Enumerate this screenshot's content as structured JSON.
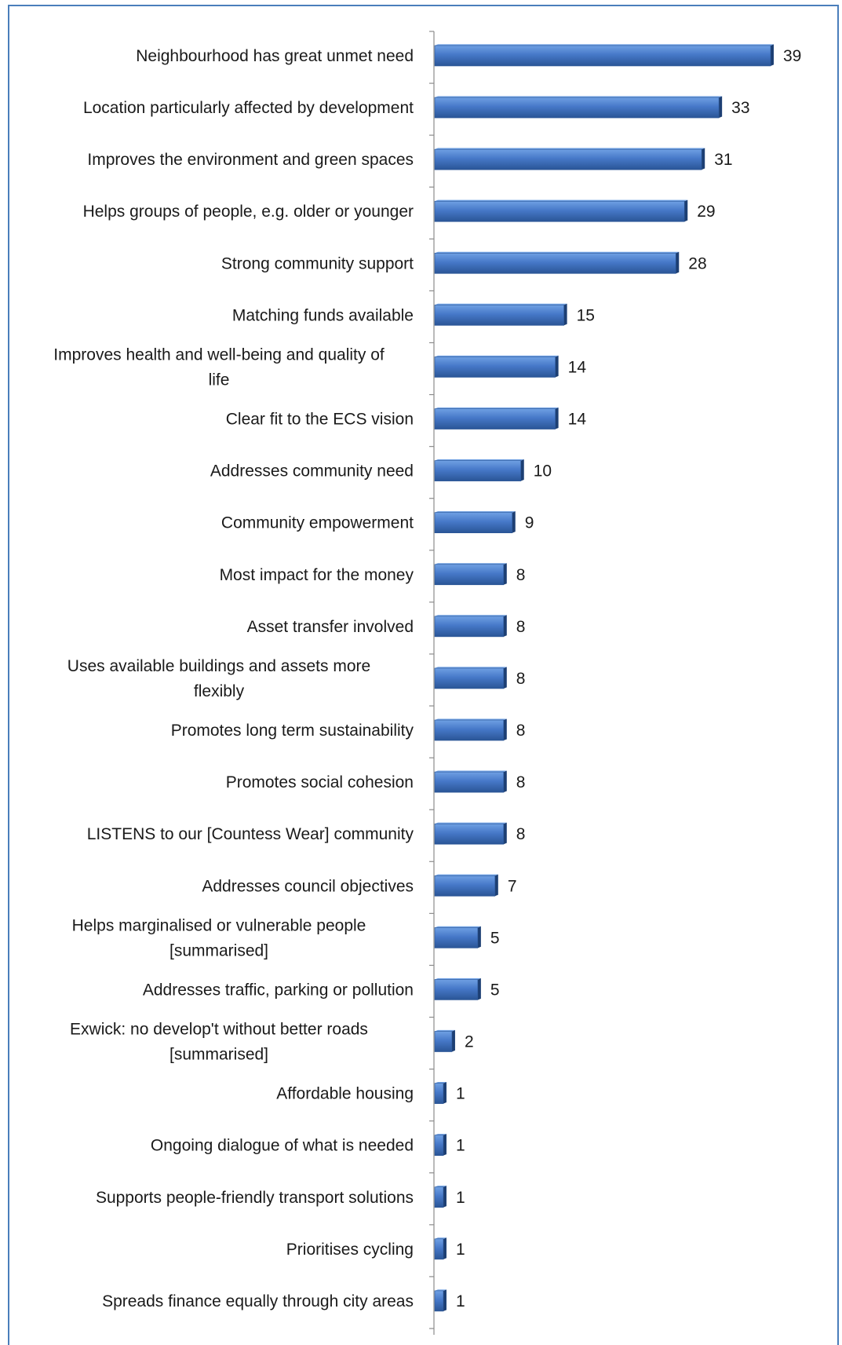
{
  "colors": {
    "bar_top": "#6fa0e3",
    "bar_mid": "#4678c8",
    "bar_bottom": "#2a5596",
    "bar_side": "#1d3f73",
    "frame": "#4a7ebb",
    "axis": "#8c8c8c"
  },
  "chart_data": {
    "type": "bar",
    "orientation": "horizontal",
    "title": "",
    "xlabel": "",
    "ylabel": "",
    "grid": false,
    "legend": "none",
    "xlim": [
      0,
      42
    ],
    "categories": [
      [
        "Neighbourhood has great unmet need"
      ],
      [
        "Location particularly affected by development"
      ],
      [
        "Improves the environment and green spaces"
      ],
      [
        "Helps  groups of people, e.g. older or younger"
      ],
      [
        "Strong community support"
      ],
      [
        "Matching funds available"
      ],
      [
        "Improves health and well-being and quality of",
        "life"
      ],
      [
        "Clear fit to the ECS vision"
      ],
      [
        "Addresses community need"
      ],
      [
        "Community empowerment"
      ],
      [
        "Most impact for the money"
      ],
      [
        "Asset transfer involved"
      ],
      [
        "Uses available buildings and assets more",
        "flexibly"
      ],
      [
        "Promotes long term sustainability"
      ],
      [
        "Promotes social cohesion"
      ],
      [
        "LISTENS to our [Countess Wear] community"
      ],
      [
        "Addresses council objectives"
      ],
      [
        "Helps marginalised or vulnerable people",
        "[summarised]"
      ],
      [
        "Addresses traffic, parking or pollution"
      ],
      [
        "Exwick: no develop't without  better roads",
        "[summarised]"
      ],
      [
        "Affordable housing"
      ],
      [
        "Ongoing dialogue of what is needed"
      ],
      [
        "Supports people-friendly transport solutions"
      ],
      [
        "Prioritises cycling"
      ],
      [
        "Spreads finance equally through city areas"
      ]
    ],
    "values": [
      39,
      33,
      31,
      29,
      28,
      15,
      14,
      14,
      10,
      9,
      8,
      8,
      8,
      8,
      8,
      8,
      7,
      5,
      5,
      2,
      1,
      1,
      1,
      1,
      1
    ],
    "data_labels": [
      "39",
      "33",
      "31",
      "29",
      "28",
      "15",
      "14",
      "14",
      "10",
      "9",
      "8",
      "8",
      "8",
      "8",
      "8",
      "8",
      "7",
      "5",
      "5",
      "2",
      "1",
      "1",
      "1",
      "1",
      "1"
    ]
  }
}
